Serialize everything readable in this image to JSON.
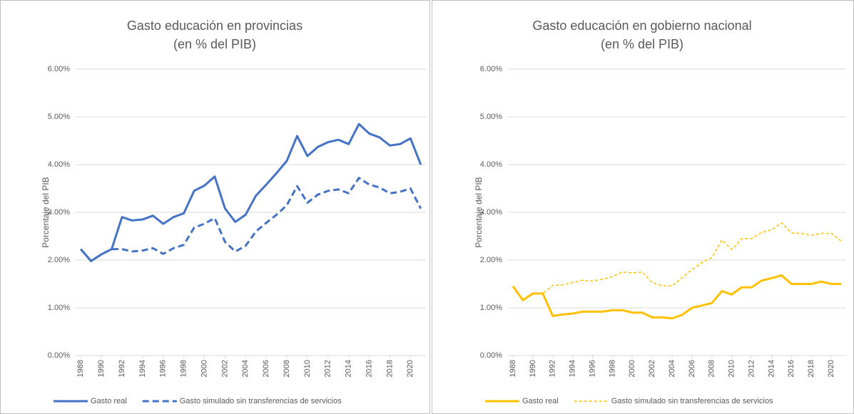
{
  "chart_data": [
    {
      "type": "line",
      "title": "Gasto educación en provincias",
      "subtitle": "(en % del PIB)",
      "y_label": "Porcentaje del PIB",
      "x": [
        1988,
        1989,
        1990,
        1991,
        1992,
        1993,
        1994,
        1995,
        1996,
        1997,
        1998,
        1999,
        2000,
        2001,
        2002,
        2003,
        2004,
        2005,
        2006,
        2007,
        2008,
        2009,
        2010,
        2011,
        2012,
        2013,
        2014,
        2015,
        2016,
        2017,
        2018,
        2019,
        2020,
        2021
      ],
      "xlim": [
        1987.5,
        2021.5
      ],
      "xticks": [
        1988,
        1990,
        1992,
        1994,
        1996,
        1998,
        2000,
        2002,
        2004,
        2006,
        2008,
        2010,
        2012,
        2014,
        2016,
        2018,
        2020
      ],
      "ylim": [
        0,
        6
      ],
      "yticks": [
        {
          "value": 0,
          "label": "0.00%"
        },
        {
          "value": 1,
          "label": "1.00%"
        },
        {
          "value": 2,
          "label": "2.00%"
        },
        {
          "value": 3,
          "label": "3.00%"
        },
        {
          "value": 4,
          "label": "4.00%"
        },
        {
          "value": 5,
          "label": "5.00%"
        },
        {
          "value": 6,
          "label": "6.00%"
        }
      ],
      "grid": true,
      "legend": "bottom",
      "series": [
        {
          "name": "Gasto real",
          "color": "#4472c4",
          "dash": "none",
          "values": [
            2.23,
            1.98,
            2.12,
            2.23,
            2.9,
            2.83,
            2.85,
            2.93,
            2.76,
            2.9,
            2.98,
            3.45,
            3.56,
            3.75,
            3.08,
            2.8,
            2.95,
            3.35,
            3.58,
            3.82,
            4.08,
            4.6,
            4.18,
            4.37,
            4.47,
            4.52,
            4.43,
            4.85,
            4.65,
            4.57,
            4.4,
            4.43,
            4.55,
            4.0
          ]
        },
        {
          "name": "Gasto simulado sin transferencias de servicios",
          "color": "#4472c4",
          "dash": "long",
          "values": [
            2.23,
            1.98,
            2.12,
            2.23,
            2.23,
            2.18,
            2.2,
            2.25,
            2.13,
            2.25,
            2.32,
            2.68,
            2.76,
            2.88,
            2.38,
            2.18,
            2.3,
            2.6,
            2.78,
            2.95,
            3.15,
            3.55,
            3.2,
            3.37,
            3.45,
            3.48,
            3.4,
            3.72,
            3.58,
            3.52,
            3.4,
            3.43,
            3.5,
            3.08
          ]
        }
      ]
    },
    {
      "type": "line",
      "title": "Gasto educación en gobierno nacional",
      "subtitle": "(en % del PIB)",
      "y_label": "Porcentaje del PIB",
      "x": [
        1988,
        1989,
        1990,
        1991,
        1992,
        1993,
        1994,
        1995,
        1996,
        1997,
        1998,
        1999,
        2000,
        2001,
        2002,
        2003,
        2004,
        2005,
        2006,
        2007,
        2008,
        2009,
        2010,
        2011,
        2012,
        2013,
        2014,
        2015,
        2016,
        2017,
        2018,
        2019,
        2020,
        2021
      ],
      "xlim": [
        1987.5,
        2021.5
      ],
      "xticks": [
        1988,
        1990,
        1992,
        1994,
        1996,
        1998,
        2000,
        2002,
        2004,
        2006,
        2008,
        2010,
        2012,
        2014,
        2016,
        2018,
        2020
      ],
      "ylim": [
        0,
        6
      ],
      "yticks": [
        {
          "value": 0,
          "label": "0.00%"
        },
        {
          "value": 1,
          "label": "1.00%"
        },
        {
          "value": 2,
          "label": "2.00%"
        },
        {
          "value": 3,
          "label": "3.00%"
        },
        {
          "value": 4,
          "label": "4.00%"
        },
        {
          "value": 5,
          "label": "5.00%"
        },
        {
          "value": 6,
          "label": "6.00%"
        }
      ],
      "grid": true,
      "legend": "bottom",
      "series": [
        {
          "name": "Gasto real",
          "color": "#ffc000",
          "dash": "none",
          "values": [
            1.45,
            1.16,
            1.3,
            1.3,
            0.83,
            0.86,
            0.88,
            0.92,
            0.92,
            0.92,
            0.95,
            0.95,
            0.9,
            0.9,
            0.8,
            0.8,
            0.78,
            0.85,
            1.0,
            1.05,
            1.1,
            1.35,
            1.28,
            1.43,
            1.43,
            1.57,
            1.62,
            1.68,
            1.5,
            1.5,
            1.5,
            1.55,
            1.5,
            1.5
          ]
        },
        {
          "name": "Gasto simulado sin transferencias de servicios",
          "color": "#ffc000",
          "dash": "short",
          "values": [
            1.45,
            1.16,
            1.3,
            1.3,
            1.47,
            1.48,
            1.53,
            1.58,
            1.56,
            1.6,
            1.65,
            1.75,
            1.73,
            1.75,
            1.53,
            1.46,
            1.46,
            1.63,
            1.8,
            1.95,
            2.05,
            2.42,
            2.22,
            2.45,
            2.45,
            2.58,
            2.63,
            2.78,
            2.57,
            2.56,
            2.52,
            2.56,
            2.56,
            2.4
          ]
        }
      ]
    }
  ]
}
